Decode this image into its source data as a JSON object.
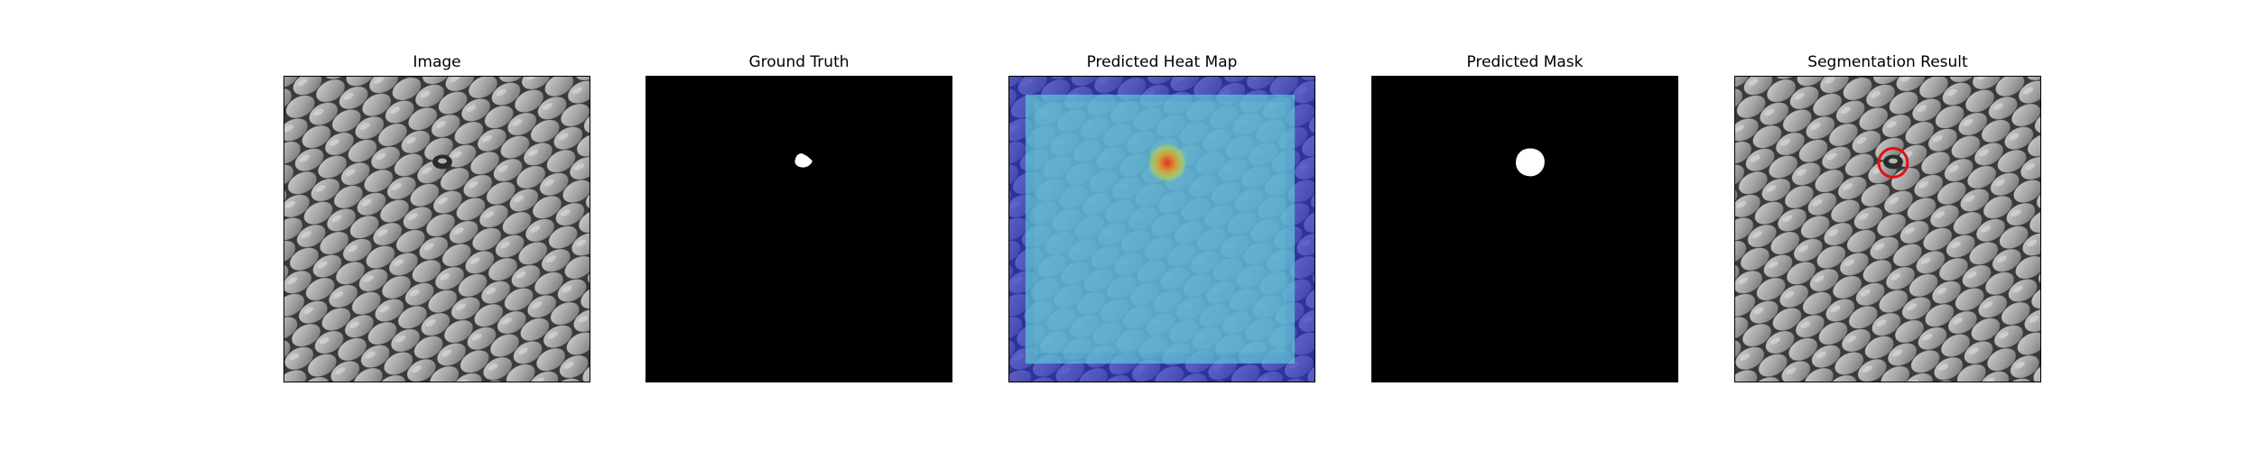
{
  "figure": {
    "panels": [
      {
        "title": "Image"
      },
      {
        "title": "Ground Truth"
      },
      {
        "title": "Predicted Heat Map"
      },
      {
        "title": "Predicted Mask"
      },
      {
        "title": "Segmentation Result"
      }
    ]
  },
  "colors": {
    "background": "#ffffff",
    "mask_background": "#000000",
    "mask_foreground": "#ffffff",
    "texture_dark": "#3a3a3a",
    "texture_light": "#a8a8a8",
    "heatmap_low": "#2b2fc4",
    "heatmap_mid": "#5fc9d8",
    "heatmap_high": "#e32b1e",
    "result_circle": "#e01010"
  }
}
